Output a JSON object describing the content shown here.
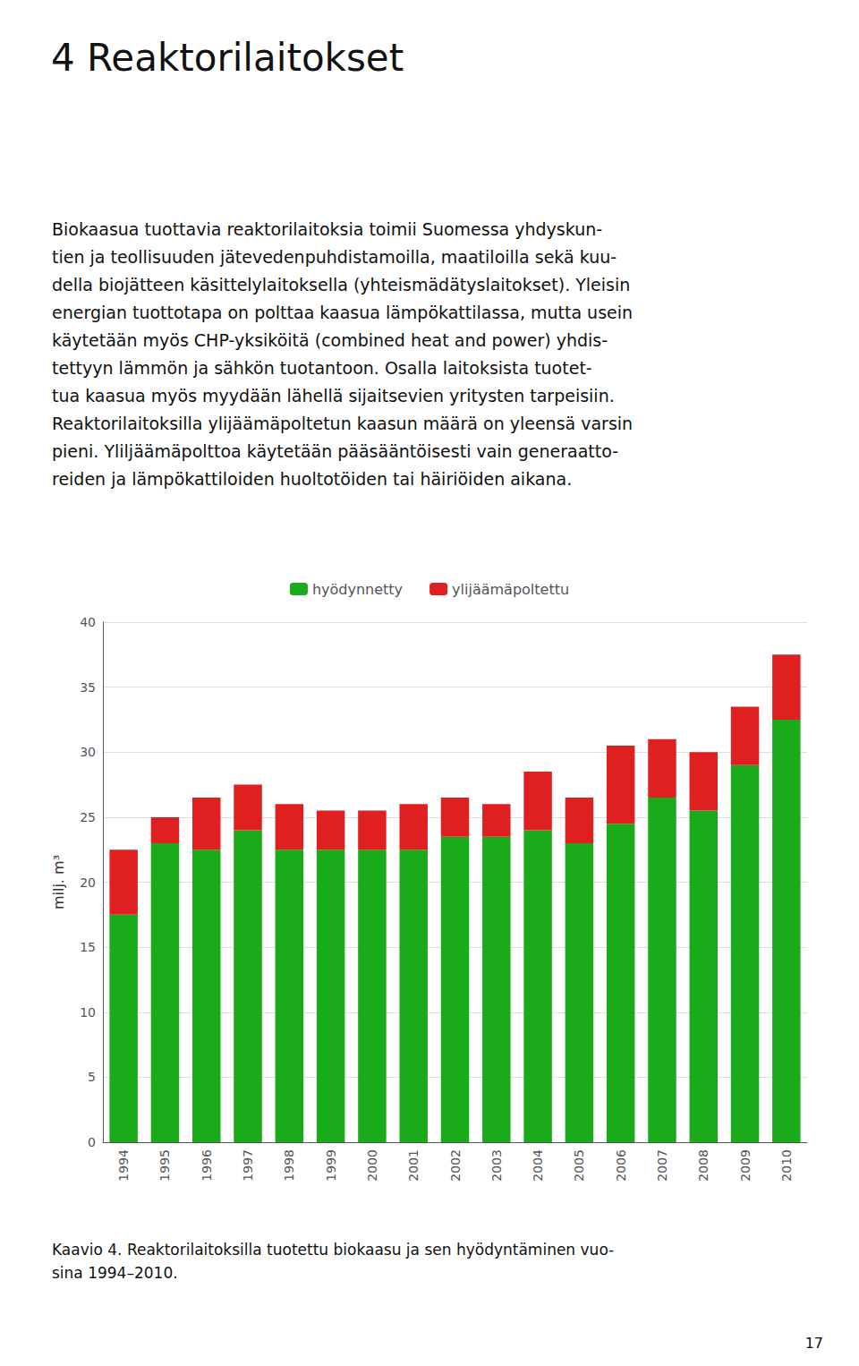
{
  "chart_data": {
    "type": "bar",
    "title": "4 Reaktorilaitokset",
    "annotations": [
      "Biokaasua tuottavia reaktorilaitoksia toimii Suomessa yhdyskun-\ntien ja teollisuuden jätevedenpuhdistamoilla, maatiloilla sekä kuu-\ndella biojätteen käsittelylaitoksella (yhteismädätyslaitokset). Yleisin\nenergian tuottotapa on polttaa kaasua lämpökattilassa, mutta usein\nkäytetään myös CHP-yksiköitä (combined heat and power) yhdis-\ntettyyn lämmön ja sähkön tuotantoon. Osalla laitoksista tuotet-\ntua kaasua myös myydään lähellä sijaitsevien yritysten tarpeisiin.\nReaktorilaitoksilla ylijäämäpoltetun kaasun määrä on yleensä varsin\npieni. Yliljäämäpolttoa käytetään pääsääntöisesti vain generaatto-\nreiden ja lämpökattiloiden huoltotöiden tai häiriöiden aikana.",
      "Kaavio 4. Reaktorilaitoksilla tuotettu biokaasu ja sen hyödyntäminen vuo-\nsina 1994–2010.",
      "17"
    ],
    "categories": [
      "1994",
      "1995",
      "1996",
      "1997",
      "1998",
      "1999",
      "2000",
      "2001",
      "2002",
      "2003",
      "2004",
      "2005",
      "2006",
      "2007",
      "2008",
      "2009",
      "2010"
    ],
    "series": [
      {
        "name": "hyödynnetty",
        "color": "#1aab1a",
        "values": [
          17.5,
          23.0,
          22.5,
          24.0,
          22.5,
          22.5,
          22.5,
          22.5,
          23.5,
          23.5,
          24.0,
          23.0,
          24.5,
          26.5,
          25.5,
          29.0,
          32.5
        ]
      },
      {
        "name": "ylijäämäpoltettu",
        "color": "#e02020",
        "values": [
          5.0,
          2.0,
          4.0,
          3.5,
          3.5,
          3.0,
          3.0,
          3.5,
          3.0,
          2.5,
          4.5,
          3.5,
          6.0,
          4.5,
          4.5,
          4.5,
          5.0
        ]
      }
    ],
    "ylabel": "milj. m³",
    "ylim": [
      0,
      40
    ],
    "yticks": [
      0,
      5,
      10,
      15,
      20,
      25,
      30,
      35,
      40
    ],
    "stacked": true,
    "grid": true,
    "legend": "top"
  }
}
